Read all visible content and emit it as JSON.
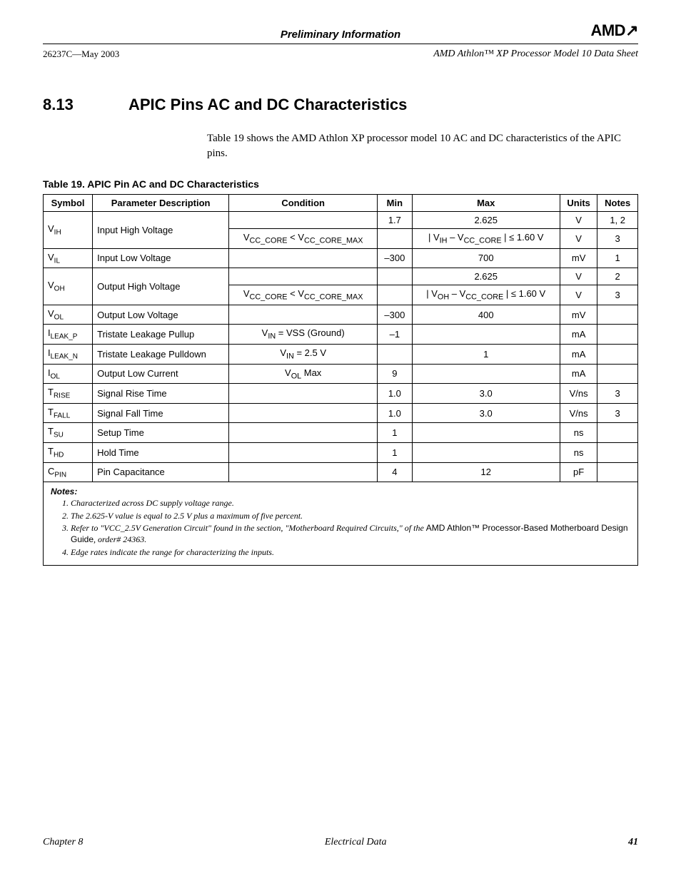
{
  "header": {
    "banner": "Preliminary Information",
    "doc_id": "26237C—May 2003",
    "doc_title": "AMD Athlon™ XP Processor Model 10 Data Sheet",
    "logo": "AMD"
  },
  "section": {
    "number": "8.13",
    "title": "APIC Pins AC and DC Characteristics",
    "intro": "Table 19 shows the AMD Athlon XP processor model 10 AC and DC characteristics of the APIC pins."
  },
  "table": {
    "caption": "Table 19.   APIC Pin AC and DC Characteristics",
    "columns": [
      "Symbol",
      "Parameter Description",
      "Condition",
      "Min",
      "Max",
      "Units",
      "Notes"
    ],
    "rows": [
      {
        "symbol_base": "V",
        "symbol_sub": "IH",
        "desc": "Input High Voltage",
        "rowspan": 2,
        "condition": "",
        "min": "1.7",
        "max": "2.625",
        "units": "V",
        "notes": "1, 2"
      },
      {
        "condition_html": "V<sub>CC_CORE</sub> < V<sub>CC_CORE_MAX</sub>",
        "min": "",
        "max_html": "| V<sub>IH</sub> – V<sub>CC_CORE</sub> | ≤ 1.60 V",
        "units": "V",
        "notes": "3"
      },
      {
        "symbol_base": "V",
        "symbol_sub": "IL",
        "desc": "Input Low Voltage",
        "condition": "",
        "min": "–300",
        "max": "700",
        "units": "mV",
        "notes": "1"
      },
      {
        "symbol_base": "V",
        "symbol_sub": "OH",
        "desc": "Output High Voltage",
        "rowspan": 2,
        "condition": "",
        "min": "",
        "max": "2.625",
        "units": "V",
        "notes": "2"
      },
      {
        "condition_html": "V<sub>CC_CORE</sub> < V<sub>CC_CORE_MAX</sub>",
        "min": "",
        "max_html": "| V<sub>OH</sub> – V<sub>CC_CORE</sub> | ≤ 1.60 V",
        "units": "V",
        "notes": "3"
      },
      {
        "symbol_base": "V",
        "symbol_sub": "OL",
        "desc": "Output Low Voltage",
        "condition": "",
        "min": "–300",
        "max": "400",
        "units": "mV",
        "notes": ""
      },
      {
        "symbol_base": "I",
        "symbol_sub": "LEAK_P",
        "desc": "Tristate Leakage Pullup",
        "condition_html": "V<sub>IN</sub> = VSS (Ground)",
        "min": "–1",
        "max": "",
        "units": "mA",
        "notes": ""
      },
      {
        "symbol_base": "I",
        "symbol_sub": "LEAK_N",
        "desc": "Tristate Leakage Pulldown",
        "condition_html": "V<sub>IN</sub> = 2.5 V",
        "min": "",
        "max": "1",
        "units": "mA",
        "notes": ""
      },
      {
        "symbol_base": "I",
        "symbol_sub": "OL",
        "desc": "Output Low Current",
        "condition_html": "V<sub>OL</sub> Max",
        "min": "9",
        "max": "",
        "units": "mA",
        "notes": ""
      },
      {
        "symbol_base": "T",
        "symbol_sub": "RISE",
        "desc": "Signal Rise Time",
        "condition": "",
        "min": "1.0",
        "max": "3.0",
        "units": "V/ns",
        "notes": "3"
      },
      {
        "symbol_base": "T",
        "symbol_sub": "FALL",
        "desc": "Signal Fall Time",
        "condition": "",
        "min": "1.0",
        "max": "3.0",
        "units": "V/ns",
        "notes": "3"
      },
      {
        "symbol_base": "T",
        "symbol_sub": "SU",
        "desc": "Setup Time",
        "condition": "",
        "min": "1",
        "max": "",
        "units": "ns",
        "notes": ""
      },
      {
        "symbol_base": "T",
        "symbol_sub": "HD",
        "desc": "Hold Time",
        "condition": "",
        "min": "1",
        "max": "",
        "units": "ns",
        "notes": ""
      },
      {
        "symbol_base": "C",
        "symbol_sub": "PIN",
        "desc": "Pin Capacitance",
        "condition": "",
        "min": "4",
        "max": "12",
        "units": "pF",
        "notes": ""
      }
    ],
    "notes_label": "Notes:",
    "notes": [
      "Characterized across DC supply voltage range.",
      "The 2.625-V value is equal to 2.5 V plus a maximum of five percent.",
      "Refer to \"VCC_2.5V Generation Circuit\" found in the section, \"Motherboard Required Circuits,\" of the <span class=\"upright\">AMD Athlon™ Processor-Based Motherboard Design Guide</span>, order# 24363.",
      "Edge rates indicate the range for characterizing the inputs."
    ]
  },
  "footer": {
    "left": "Chapter 8",
    "center": "Electrical Data",
    "page": "41"
  }
}
